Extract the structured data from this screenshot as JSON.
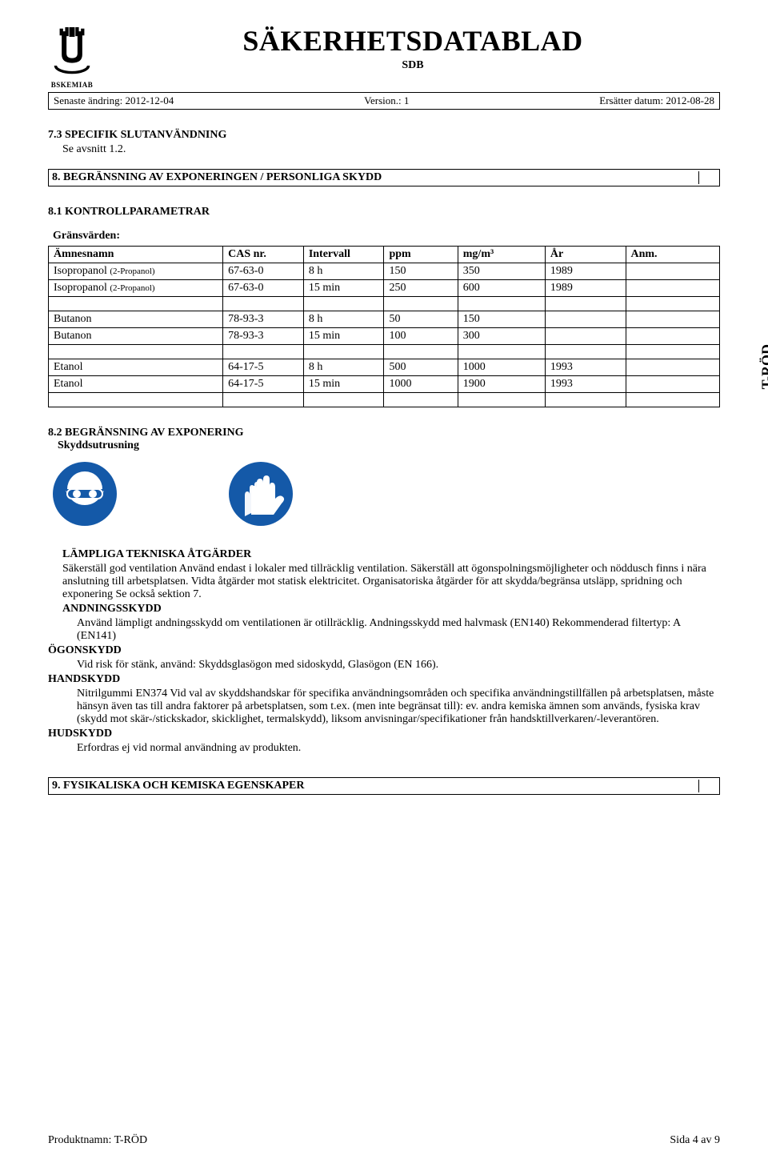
{
  "header": {
    "main_title": "SÄKERHETSDATABLAD",
    "sub_title": "SDB",
    "logo_text": "BSKEMIAB"
  },
  "meta": {
    "left_label": "Senaste ändring: ",
    "left_value": "2012-12-04",
    "mid_label": "Version.: 1",
    "right_label": "Ersätter datum: ",
    "right_value": "2012-08-28"
  },
  "section73": {
    "heading": "7.3 SPECIFIK SLUTANVÄNDNING",
    "body": "Se avsnitt 1.2."
  },
  "section8": {
    "heading": "8. BEGRÄNSNING AV EXPONERINGEN / PERSONLIGA SKYDD"
  },
  "section81": {
    "heading": "8.1 KONTROLLPARAMETRAR",
    "limits_label": "Gränsvärden:"
  },
  "table": {
    "columns": [
      "Ämnesnamn",
      "CAS nr.",
      "Intervall",
      "ppm",
      "mg/m³",
      "År",
      "Anm."
    ],
    "rows": [
      [
        "Isopropanol (2-Propanol)",
        "67-63-0",
        "8 h",
        "150",
        "350",
        "1989",
        ""
      ],
      [
        "Isopropanol (2-Propanol)",
        "67-63-0",
        "15 min",
        "250",
        "600",
        "1989",
        ""
      ],
      [
        "",
        "",
        "",
        "",
        "",
        "",
        ""
      ],
      [
        "Butanon",
        "78-93-3",
        "8 h",
        "50",
        "150",
        "",
        ""
      ],
      [
        "Butanon",
        "78-93-3",
        "15 min",
        "100",
        "300",
        "",
        ""
      ],
      [
        "",
        "",
        "",
        "",
        "",
        "",
        ""
      ],
      [
        "Etanol",
        "64-17-5",
        "8 h",
        "500",
        "1000",
        "1993",
        ""
      ],
      [
        "Etanol",
        "64-17-5",
        "15 min",
        "1000",
        "1900",
        "1993",
        ""
      ],
      [
        "",
        "",
        "",
        "",
        "",
        "",
        ""
      ]
    ],
    "col_widths": [
      "26%",
      "12%",
      "12%",
      "11%",
      "13%",
      "12%",
      "14%"
    ]
  },
  "section82": {
    "heading": "8.2 BEGRÄNSNING AV EXPONERING",
    "sub": "Skyddsutrusning"
  },
  "vertical_label": "T-RÖD",
  "icons": {
    "circle_bg": "#1459a8",
    "fg": "#ffffff"
  },
  "measures": {
    "heading": "LÄMPLIGA TEKNISKA ÅTGÄRDER",
    "body": "Säkerställ god ventilation Använd endast i lokaler med tillräcklig ventilation. Säkerställ att ögonspolningsmöjligheter och nöddusch finns i nära anslutning till arbetsplatsen. Vidta åtgärder mot statisk elektricitet. Organisatoriska åtgärder för att skydda/begränsa utsläpp, spridning och exponering Se också sektion 7.",
    "resp_h": "ANDNINGSSKYDD",
    "resp_b": "Använd lämpligt andningsskydd om ventilationen är otillräcklig. Andningsskydd med halvmask (EN140) Rekommenderad filtertyp: A (EN141)",
    "eye_h": "ÖGONSKYDD",
    "eye_b": "Vid risk för stänk, använd: Skyddsglasögon med sidoskydd, Glasögon (EN 166).",
    "hand_h": "HANDSKYDD",
    "hand_b": "Nitrilgummi EN374 Vid val av skyddshandskar för specifika användningsområden och specifika användningstillfällen på arbetsplatsen, måste hänsyn även tas till andra faktorer på arbetsplatsen, som t.ex. (men inte begränsat till): ev. andra kemiska ämnen som används, fysiska krav (skydd mot skär-/stickskador, skicklighet, termalskydd), liksom anvisningar/specifikationer från handsktillverkaren/-leverantören.",
    "skin_h": "HUDSKYDD",
    "skin_b": "Erfordras ej vid normal användning av produkten."
  },
  "section9": {
    "heading": "9. FYSIKALISKA OCH KEMISKA EGENSKAPER"
  },
  "footer": {
    "left_label": "Produktnamn: ",
    "left_value": "T-RÖD",
    "right": "Sida 4 av 9"
  }
}
